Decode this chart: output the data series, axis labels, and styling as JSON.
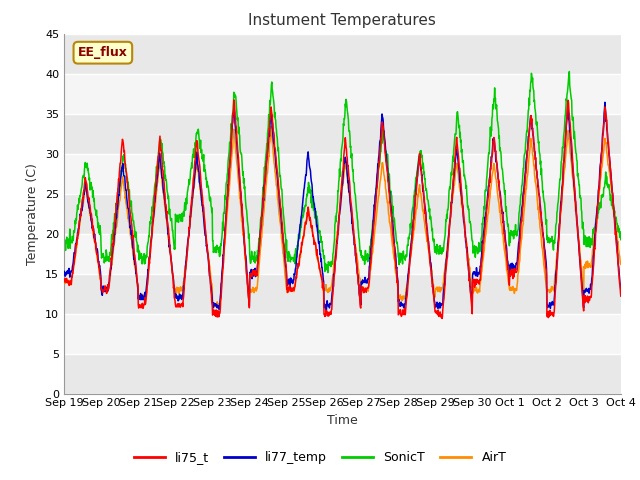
{
  "title": "Instument Temperatures",
  "xlabel": "Time",
  "ylabel": "Temperature (C)",
  "ylim": [
    0,
    45
  ],
  "yticks": [
    0,
    5,
    10,
    15,
    20,
    25,
    30,
    35,
    40,
    45
  ],
  "x_tick_labels": [
    "Sep 19",
    "Sep 20",
    "Sep 21",
    "Sep 22",
    "Sep 23",
    "Sep 24",
    "Sep 25",
    "Sep 26",
    "Sep 27",
    "Sep 28",
    "Sep 29",
    "Sep 30",
    "Oct 1",
    "Oct 2",
    "Oct 3",
    "Oct 4"
  ],
  "annotation_text": "EE_flux",
  "annotation_color": "#8B0000",
  "annotation_bg": "#FFFFCC",
  "annotation_border": "#B8860B",
  "series_colors": {
    "li75_t": "#FF0000",
    "li77_temp": "#0000CC",
    "SonicT": "#00CC00",
    "AirT": "#FF8C00"
  },
  "fig_facecolor": "#FFFFFF",
  "plot_facecolor": "#FFFFFF",
  "band_dark": "#E8E8E8",
  "band_light": "#F5F5F5",
  "title_fontsize": 11,
  "label_fontsize": 9,
  "tick_fontsize": 8
}
